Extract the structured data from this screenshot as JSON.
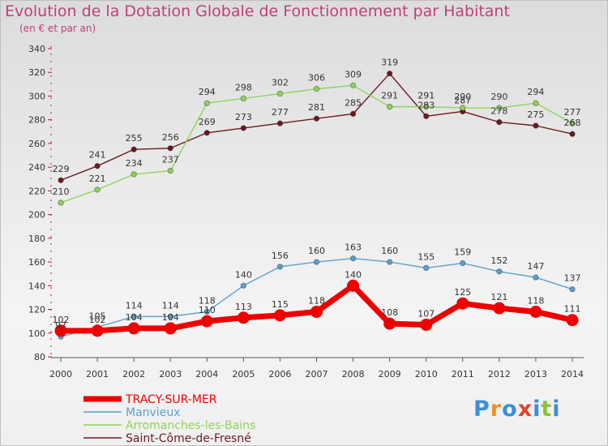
{
  "header": {
    "title": "Evolution de la Dotation Globale de Fonctionnement par Habitant",
    "subtitle": "(en € et par an)"
  },
  "logo": {
    "text": "Proxiti"
  },
  "chart_data": {
    "type": "line",
    "title": "Evolution de la Dotation Globale de Fonctionnement par Habitant",
    "subtitle": "(en € et par an)",
    "x": [
      "2000",
      "2001",
      "2002",
      "2003",
      "2004",
      "2005",
      "2006",
      "2007",
      "2008",
      "2009",
      "2010",
      "2011",
      "2012",
      "2013",
      "2014"
    ],
    "ylim": [
      80,
      340
    ],
    "yticks": [
      80,
      100,
      120,
      140,
      160,
      180,
      200,
      220,
      240,
      260,
      280,
      300,
      320,
      340
    ],
    "grid": false,
    "legend_position": "bottom-left",
    "series": [
      {
        "name": "Saint-Côme-de-Fresné",
        "color": "#6b1a22",
        "values": [
          229,
          241,
          255,
          256,
          269,
          273,
          277,
          281,
          285,
          319,
          283,
          287,
          278,
          275,
          268
        ]
      },
      {
        "name": "Arromanches-les-Bains",
        "color": "#8fd45a",
        "values": [
          210,
          221,
          234,
          237,
          294,
          298,
          302,
          306,
          309,
          291,
          291,
          290,
          290,
          294,
          277
        ]
      },
      {
        "name": "Manvieux",
        "color": "#5ba0d0",
        "values": [
          97,
          105,
          114,
          114,
          118,
          140,
          156,
          160,
          163,
          160,
          155,
          159,
          152,
          147,
          137
        ]
      },
      {
        "name": "TRACY-SUR-MER",
        "color": "#ee0000",
        "values": [
          102,
          102,
          104,
          104,
          110,
          113,
          115,
          118,
          140,
          108,
          107,
          125,
          121,
          118,
          111
        ]
      }
    ]
  }
}
